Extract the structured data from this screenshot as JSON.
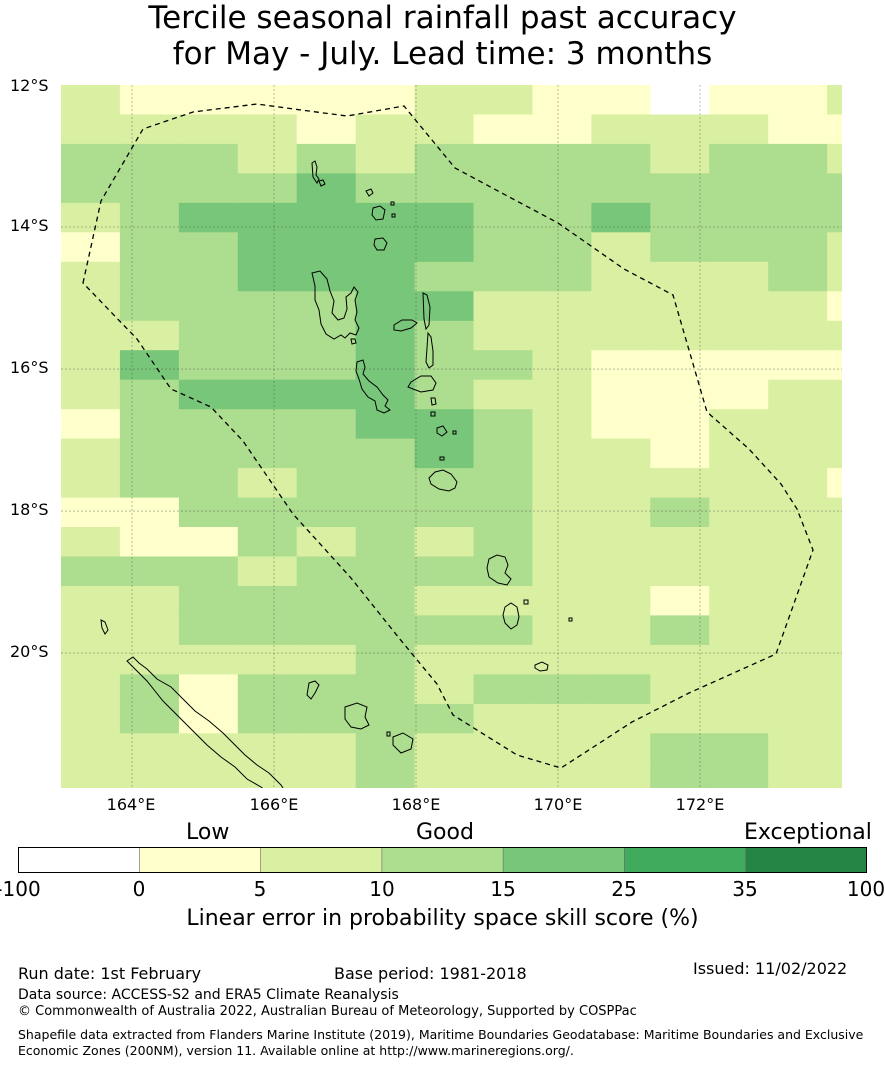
{
  "title": {
    "line1": "Tercile seasonal rainfall past accuracy",
    "line2": "for May - July. Lead time: 3 months"
  },
  "map": {
    "lat_labels": [
      "12°S",
      "14°S",
      "16°S",
      "18°S",
      "20°S"
    ],
    "lon_labels": [
      "164°E",
      "166°E",
      "168°E",
      "170°E",
      "172°E"
    ],
    "extent": {
      "lon_min": 163.0,
      "lon_max": 174.0,
      "lat_min": -21.9,
      "lat_max": -12.0
    },
    "grid_lon_start": 163.0,
    "grid_lat_start": -12.0,
    "cell_size": 0.83,
    "category_colors": [
      "#ffffff",
      "#ffffcc",
      "#d9f0a3",
      "#addd8e",
      "#78c679",
      "#41ab5d",
      "#238443"
    ],
    "skill_grid": [
      [
        2,
        1,
        1,
        1,
        1,
        1,
        2,
        2,
        1,
        1,
        0,
        1,
        1,
        2,
        1,
        2
      ],
      [
        2,
        2,
        2,
        2,
        1,
        2,
        2,
        1,
        1,
        2,
        2,
        2,
        1,
        1,
        2,
        1
      ],
      [
        3,
        3,
        3,
        2,
        3,
        2,
        3,
        3,
        3,
        3,
        2,
        3,
        3,
        2,
        2,
        2
      ],
      [
        3,
        3,
        3,
        3,
        4,
        3,
        3,
        3,
        3,
        3,
        3,
        3,
        3,
        3,
        3,
        3
      ],
      [
        2,
        3,
        4,
        4,
        4,
        4,
        4,
        3,
        3,
        4,
        3,
        3,
        3,
        3,
        2,
        2
      ],
      [
        1,
        3,
        3,
        4,
        4,
        4,
        4,
        3,
        3,
        2,
        3,
        3,
        3,
        2,
        2,
        3
      ],
      [
        2,
        3,
        3,
        4,
        4,
        4,
        3,
        3,
        3,
        2,
        2,
        2,
        3,
        2,
        2,
        2
      ],
      [
        2,
        3,
        3,
        3,
        3,
        4,
        4,
        2,
        2,
        2,
        2,
        2,
        2,
        1,
        2,
        2
      ],
      [
        2,
        2,
        3,
        3,
        3,
        4,
        3,
        2,
        2,
        2,
        2,
        2,
        2,
        2,
        2,
        1
      ],
      [
        2,
        4,
        3,
        3,
        3,
        4,
        3,
        3,
        2,
        1,
        1,
        1,
        1,
        1,
        2,
        2
      ],
      [
        2,
        3,
        4,
        4,
        4,
        4,
        3,
        2,
        2,
        1,
        1,
        1,
        2,
        2,
        2,
        2
      ],
      [
        1,
        3,
        3,
        3,
        3,
        4,
        4,
        3,
        2,
        1,
        1,
        2,
        2,
        2,
        2,
        2
      ],
      [
        2,
        3,
        3,
        3,
        3,
        3,
        4,
        3,
        2,
        2,
        1,
        2,
        2,
        2,
        0,
        2
      ],
      [
        2,
        3,
        3,
        2,
        3,
        3,
        3,
        3,
        2,
        2,
        2,
        2,
        2,
        1,
        2,
        2
      ],
      [
        1,
        1,
        3,
        3,
        3,
        3,
        3,
        3,
        2,
        2,
        3,
        2,
        2,
        2,
        1,
        2
      ],
      [
        2,
        1,
        1,
        3,
        2,
        3,
        2,
        3,
        2,
        2,
        2,
        2,
        2,
        2,
        2,
        2
      ],
      [
        3,
        3,
        3,
        2,
        3,
        3,
        3,
        3,
        2,
        2,
        2,
        2,
        2,
        2,
        2,
        2
      ],
      [
        2,
        2,
        3,
        3,
        3,
        3,
        2,
        2,
        2,
        2,
        1,
        2,
        2,
        2,
        2,
        2
      ],
      [
        2,
        2,
        3,
        3,
        3,
        3,
        3,
        3,
        2,
        2,
        3,
        2,
        2,
        2,
        2,
        2
      ],
      [
        2,
        2,
        2,
        2,
        2,
        3,
        2,
        2,
        2,
        2,
        2,
        2,
        2,
        2,
        3,
        2
      ],
      [
        2,
        3,
        1,
        3,
        3,
        3,
        2,
        3,
        3,
        3,
        2,
        2,
        2,
        2,
        3,
        2
      ],
      [
        2,
        3,
        1,
        3,
        3,
        3,
        3,
        2,
        2,
        2,
        2,
        2,
        2,
        2,
        3,
        1
      ],
      [
        2,
        2,
        2,
        2,
        2,
        3,
        2,
        2,
        2,
        2,
        3,
        3,
        2,
        2,
        3,
        2
      ],
      [
        2,
        2,
        2,
        2,
        2,
        3,
        2,
        2,
        2,
        2,
        3,
        3,
        2,
        2,
        2,
        2
      ]
    ]
  },
  "colorbar": {
    "categories": [
      "Low",
      "Good",
      "Exceptional"
    ],
    "ticks": [
      "-100",
      "0",
      "5",
      "10",
      "15",
      "25",
      "35",
      "100"
    ],
    "colors": [
      "#ffffff",
      "#ffffcc",
      "#d9f0a3",
      "#addd8e",
      "#78c679",
      "#41ab5d",
      "#238443"
    ],
    "label": "Linear error in probability space skill score (%)"
  },
  "footer": {
    "run_date": "Run date: 1st February",
    "base_period": "Base period: 1981-2018",
    "issued": "Issued: 11/02/2022",
    "data_source": "Data source: ACCESS-S2 and ERA5 Climate Reanalysis",
    "copyright": "© Commonwealth of Australia 2022, Australian Bureau of Meteorology, Supported by COSPPac",
    "shapefile_line1": "Shapefile data extracted from Flanders Marine Institute (2019), Maritime Boundaries Geodatabase: Maritime Boundaries and Exclusive",
    "shapefile_line2": "Economic Zones (200NM), version 11. Available online at http://www.marineregions.org/."
  }
}
